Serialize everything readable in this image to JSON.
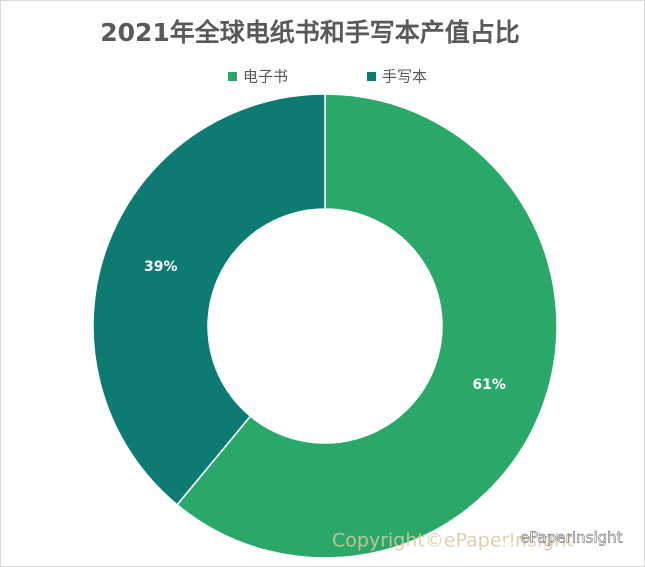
{
  "chart_data": {
    "type": "pie",
    "title": "2021年全球电纸书和手写本产值占比",
    "categories": [
      "电子书",
      "手写本"
    ],
    "values": [
      61,
      39
    ],
    "value_labels": [
      "61%",
      "39%"
    ],
    "colors": [
      "#2aa86a",
      "#0e7b72"
    ],
    "legend": "top",
    "watermark": "Copyright©ePaperInsight",
    "badge": "ePaperInsight"
  }
}
